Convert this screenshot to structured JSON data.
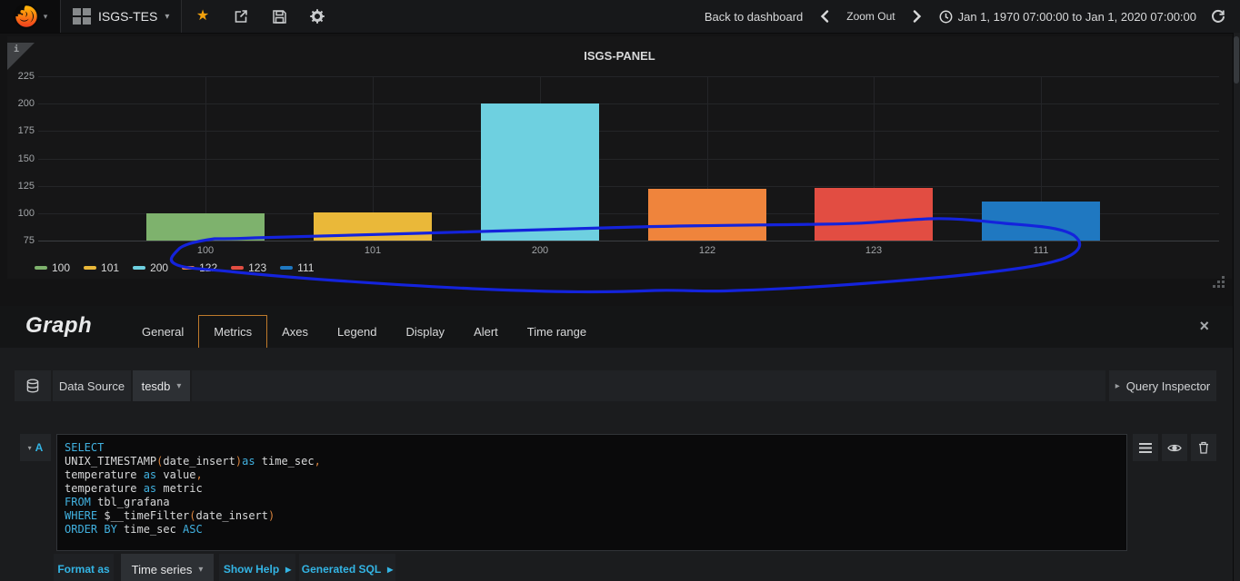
{
  "icons": {
    "caret_down": "▾",
    "caret_right": "▸",
    "close": "×",
    "star": "★",
    "info": "i"
  },
  "navbar": {
    "dashboard_name": "ISGS-TES",
    "back_to_dashboard": "Back to dashboard",
    "zoom_out": "Zoom Out",
    "time_range": "Jan 1, 1970 07:00:00 to Jan 1, 2020 07:00:00"
  },
  "panel": {
    "title": "ISGS-PANEL"
  },
  "chart_data": {
    "type": "bar",
    "title": "ISGS-PANEL",
    "categories": [
      "100",
      "101",
      "200",
      "122",
      "123",
      "111"
    ],
    "values": [
      100,
      101,
      200,
      122,
      123,
      111
    ],
    "series_colors": [
      "#7eb26d",
      "#eab839",
      "#6ed0e0",
      "#ef843c",
      "#e24d42",
      "#1f78c1"
    ],
    "ylim": [
      75,
      225
    ],
    "yticks": [
      225,
      200,
      175,
      150,
      125,
      100,
      75
    ],
    "xlabel": "",
    "ylabel": "",
    "grid": true,
    "legend_position": "bottom-left",
    "legend": [
      {
        "label": "100",
        "color": "#7eb26d"
      },
      {
        "label": "101",
        "color": "#eab839"
      },
      {
        "label": "200",
        "color": "#6ed0e0"
      },
      {
        "label": "122",
        "color": "#ef843c"
      },
      {
        "label": "123",
        "color": "#e24d42"
      },
      {
        "label": "111",
        "color": "#1f78c1"
      }
    ],
    "annotation": "hand-drawn blue ellipse circling the bars and x-axis labels"
  },
  "editor": {
    "panel_type": "Graph",
    "tabs": [
      "General",
      "Metrics",
      "Axes",
      "Legend",
      "Display",
      "Alert",
      "Time range"
    ],
    "active_tab": "Metrics",
    "datasource_label": "Data Source",
    "datasource_value": "tesdb",
    "query_inspector": "Query Inspector",
    "query": {
      "ref": "A",
      "sql_tokens": [
        [
          [
            "SELECT",
            "k"
          ]
        ],
        [
          [
            "UNIX_TIMESTAMP",
            "i"
          ],
          [
            "(",
            "p"
          ],
          [
            "date_insert",
            "i"
          ],
          [
            ")",
            "p"
          ],
          [
            "as",
            "k"
          ],
          [
            " time_sec",
            "i"
          ],
          [
            ",",
            "p"
          ]
        ],
        [
          [
            "temperature ",
            "i"
          ],
          [
            "as",
            "k"
          ],
          [
            " value",
            "i"
          ],
          [
            ",",
            "p"
          ]
        ],
        [
          [
            "temperature ",
            "i"
          ],
          [
            "as",
            "k"
          ],
          [
            " metric",
            "i"
          ]
        ],
        [
          [
            "FROM",
            "k"
          ],
          [
            " tbl_grafana",
            "i"
          ]
        ],
        [
          [
            "WHERE",
            "k"
          ],
          [
            " $__timeFilter",
            "i"
          ],
          [
            "(",
            "p"
          ],
          [
            "date_insert",
            "i"
          ],
          [
            ")",
            "p"
          ]
        ],
        [
          [
            "ORDER BY",
            "k"
          ],
          [
            " time_sec ",
            "i"
          ],
          [
            "ASC",
            "k"
          ]
        ]
      ]
    },
    "footer": {
      "format_as": "Format as",
      "format_value": "Time series",
      "show_help": "Show Help",
      "generated_sql": "Generated SQL"
    }
  }
}
